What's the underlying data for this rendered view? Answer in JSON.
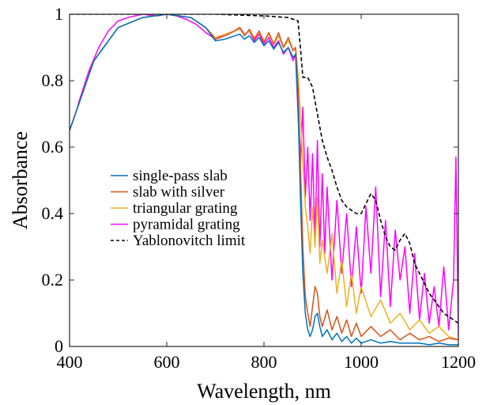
{
  "chart_data": {
    "type": "line",
    "xlabel": "Wavelength, nm",
    "ylabel": "Absorbance",
    "xlim": [
      400,
      1200
    ],
    "ylim": [
      0,
      1
    ],
    "xticks": [
      "400",
      "600",
      "800",
      "1000",
      "1200"
    ],
    "yticks": [
      "0",
      "0.2",
      "0.4",
      "0.6",
      "0.8",
      "1"
    ],
    "grid": false,
    "legend_position": "center-left",
    "series": [
      {
        "name": "single-pass slab",
        "color": "#0072BD",
        "dash": "solid",
        "x": [
          400,
          450,
          500,
          550,
          600,
          650,
          680,
          700,
          720,
          740,
          750,
          760,
          770,
          780,
          790,
          800,
          810,
          820,
          830,
          840,
          850,
          860,
          865,
          870,
          875,
          880,
          885,
          890,
          895,
          900,
          905,
          910,
          915,
          920,
          930,
          940,
          950,
          960,
          970,
          980,
          990,
          1000,
          1020,
          1040,
          1060,
          1080,
          1100,
          1120,
          1140,
          1160,
          1180,
          1200
        ],
        "y": [
          0.65,
          0.86,
          0.96,
          0.99,
          1.0,
          0.99,
          0.96,
          0.92,
          0.925,
          0.935,
          0.94,
          0.925,
          0.935,
          0.915,
          0.93,
          0.905,
          0.92,
          0.895,
          0.915,
          0.885,
          0.9,
          0.87,
          0.88,
          0.72,
          0.45,
          0.22,
          0.1,
          0.05,
          0.03,
          0.05,
          0.09,
          0.1,
          0.06,
          0.03,
          0.05,
          0.02,
          0.04,
          0.015,
          0.03,
          0.01,
          0.025,
          0.01,
          0.02,
          0.01,
          0.015,
          0.01,
          0.01,
          0.01,
          0.005,
          0.01,
          0.005,
          0.005
        ]
      },
      {
        "name": "slab with silver",
        "color": "#D95319",
        "dash": "solid",
        "x": [
          400,
          450,
          500,
          550,
          600,
          650,
          680,
          700,
          720,
          740,
          750,
          760,
          770,
          780,
          790,
          800,
          810,
          820,
          830,
          840,
          850,
          860,
          865,
          870,
          875,
          880,
          885,
          890,
          895,
          900,
          905,
          910,
          915,
          920,
          930,
          940,
          950,
          960,
          970,
          980,
          990,
          1000,
          1020,
          1040,
          1060,
          1080,
          1100,
          1120,
          1140,
          1160,
          1180,
          1200
        ],
        "y": [
          0.65,
          0.86,
          0.96,
          0.99,
          1.0,
          0.99,
          0.96,
          0.925,
          0.935,
          0.95,
          0.96,
          0.935,
          0.955,
          0.925,
          0.95,
          0.915,
          0.945,
          0.91,
          0.945,
          0.9,
          0.93,
          0.89,
          0.9,
          0.78,
          0.55,
          0.3,
          0.15,
          0.1,
          0.06,
          0.12,
          0.18,
          0.16,
          0.09,
          0.06,
          0.11,
          0.05,
          0.09,
          0.04,
          0.08,
          0.03,
          0.07,
          0.03,
          0.06,
          0.03,
          0.05,
          0.02,
          0.04,
          0.02,
          0.03,
          0.015,
          0.025,
          0.02
        ]
      },
      {
        "name": "triangular grating",
        "color": "#EDB120",
        "dash": "solid",
        "x": [
          400,
          450,
          500,
          550,
          600,
          650,
          680,
          700,
          720,
          740,
          750,
          760,
          770,
          780,
          790,
          800,
          810,
          820,
          830,
          840,
          850,
          860,
          865,
          870,
          875,
          880,
          885,
          890,
          895,
          900,
          905,
          910,
          915,
          920,
          930,
          940,
          950,
          960,
          970,
          980,
          990,
          1000,
          1020,
          1040,
          1060,
          1080,
          1100,
          1120,
          1140,
          1160,
          1180,
          1200
        ],
        "y": [
          0.65,
          0.86,
          0.96,
          0.99,
          1.0,
          0.99,
          0.96,
          0.93,
          0.94,
          0.95,
          0.955,
          0.94,
          0.95,
          0.93,
          0.945,
          0.92,
          0.94,
          0.91,
          0.935,
          0.9,
          0.92,
          0.89,
          0.9,
          0.82,
          0.7,
          0.55,
          0.42,
          0.36,
          0.28,
          0.42,
          0.3,
          0.45,
          0.25,
          0.32,
          0.22,
          0.34,
          0.16,
          0.26,
          0.12,
          0.22,
          0.1,
          0.18,
          0.09,
          0.14,
          0.07,
          0.1,
          0.05,
          0.08,
          0.04,
          0.06,
          0.03,
          0.02
        ]
      },
      {
        "name": "pyramidal grating",
        "color": "#FF00FF",
        "dash": "solid",
        "x": [
          400,
          410,
          420,
          440,
          460,
          480,
          500,
          520,
          550,
          580,
          600,
          620,
          640,
          660,
          680,
          700,
          720,
          740,
          750,
          760,
          770,
          780,
          790,
          800,
          810,
          820,
          830,
          840,
          850,
          860,
          865,
          870,
          875,
          880,
          885,
          890,
          895,
          900,
          905,
          910,
          915,
          920,
          925,
          930,
          940,
          950,
          960,
          970,
          980,
          990,
          1000,
          1010,
          1020,
          1030,
          1040,
          1050,
          1060,
          1070,
          1080,
          1090,
          1100,
          1110,
          1120,
          1130,
          1140,
          1150,
          1160,
          1170,
          1180,
          1190,
          1195,
          1200
        ],
        "y": [
          0.65,
          0.69,
          0.74,
          0.83,
          0.9,
          0.95,
          0.98,
          0.99,
          1.0,
          0.995,
          1.0,
          0.995,
          0.985,
          0.97,
          0.945,
          0.925,
          0.94,
          0.95,
          0.96,
          0.94,
          0.95,
          0.92,
          0.94,
          0.91,
          0.93,
          0.9,
          0.92,
          0.88,
          0.9,
          0.86,
          0.88,
          0.7,
          0.55,
          0.72,
          0.45,
          0.6,
          0.38,
          0.58,
          0.32,
          0.62,
          0.3,
          0.52,
          0.28,
          0.48,
          0.2,
          0.44,
          0.22,
          0.4,
          0.18,
          0.36,
          0.16,
          0.42,
          0.22,
          0.48,
          0.15,
          0.38,
          0.12,
          0.35,
          0.2,
          0.3,
          0.1,
          0.28,
          0.08,
          0.22,
          0.07,
          0.18,
          0.06,
          0.24,
          0.05,
          0.2,
          0.57,
          0.02
        ]
      },
      {
        "name": "Yablonovitch limit",
        "color": "#000000",
        "dash": "dashed",
        "x": [
          400,
          500,
          600,
          700,
          800,
          850,
          870,
          875,
          880,
          885,
          890,
          900,
          910,
          920,
          930,
          940,
          950,
          960,
          970,
          980,
          990,
          1000,
          1010,
          1020,
          1030,
          1040,
          1050,
          1060,
          1070,
          1080,
          1090,
          1100,
          1110,
          1120,
          1130,
          1140,
          1150,
          1160,
          1170,
          1180,
          1190,
          1200
        ],
        "y": [
          1.0,
          1.0,
          1.0,
          1.0,
          0.995,
          0.99,
          0.98,
          0.9,
          0.81,
          0.81,
          0.81,
          0.78,
          0.7,
          0.62,
          0.57,
          0.53,
          0.48,
          0.44,
          0.42,
          0.41,
          0.4,
          0.4,
          0.43,
          0.46,
          0.44,
          0.38,
          0.33,
          0.3,
          0.29,
          0.32,
          0.34,
          0.31,
          0.25,
          0.22,
          0.19,
          0.16,
          0.14,
          0.12,
          0.1,
          0.09,
          0.08,
          0.07
        ]
      }
    ]
  }
}
